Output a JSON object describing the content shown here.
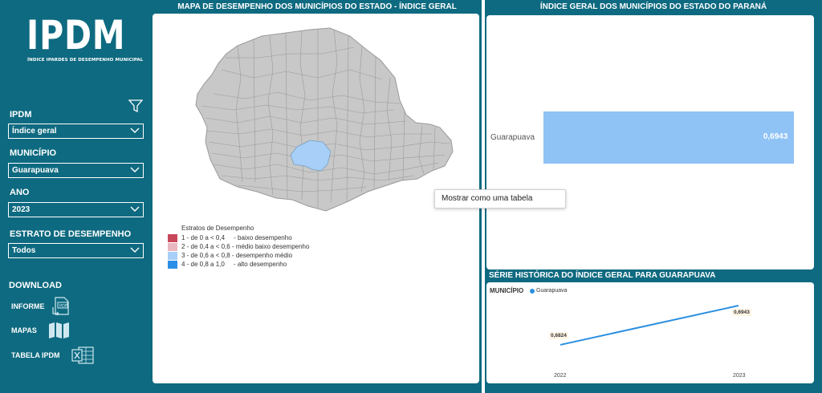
{
  "logo": {
    "title": "IPDM",
    "subtitle": "ÍNDICE IPARDES DE DESEMPENHO MUNICIPAL"
  },
  "filters": {
    "ipdm_label": "IPDM",
    "ipdm_value": "Índice geral",
    "municipio_label": "MUNICÍPIO",
    "municipio_value": "Guarapuava",
    "ano_label": "ANO",
    "ano_value": "2023",
    "estrato_label": "ESTRATO DE DESEMPENHO",
    "estrato_value": "Todos"
  },
  "download": {
    "title": "DOWNLOAD",
    "items": [
      {
        "label": "INFORME",
        "icon": "pdf-icon"
      },
      {
        "label": "MAPAS",
        "icon": "map-icon"
      },
      {
        "label": "TABELA IPDM",
        "icon": "excel-icon"
      }
    ]
  },
  "map_panel": {
    "title": "MAPA DE DESEMPENHO DOS MUNICÍPIOS DO ESTADO - ÍNDICE GERAL",
    "legend_title": "Estratos de Desempenho",
    "legend": [
      {
        "label": "1 - de 0 a < 0,4     - baixo desempenho",
        "color": "#c9475a"
      },
      {
        "label": "2 - de 0,4 a < 0,6 - médio baixo desempenho",
        "color": "#e8b7c0"
      },
      {
        "label": "3 - de 0,6 a < 0,8 - desempenho médio",
        "color": "#a7cff7"
      },
      {
        "label": "4 - de 0,8 a 1,0     - alto desempenho",
        "color": "#2b8fe8"
      }
    ],
    "highlight_color": "#a7cff7",
    "base_color": "#c8c8c8"
  },
  "tooltip": {
    "text": "Mostrar como uma tabela"
  },
  "chart_data": [
    {
      "type": "bar",
      "title": "ÍNDICE GERAL DOS MUNICÍPIOS DO ESTADO DO PARANÁ",
      "categories": [
        "Guarapuava"
      ],
      "values": [
        0.6943
      ],
      "value_labels": [
        "0,6943"
      ],
      "xlim": [
        0,
        0.7
      ]
    },
    {
      "type": "line",
      "title": "SÉRIE HISTÓRICA DO ÍNDICE GERAL PARA GUARAPUAVA",
      "legend_title": "MUNICÍPIO",
      "x": [
        "2022",
        "2023"
      ],
      "series": [
        {
          "name": "Guarapuava",
          "values": [
            0.6824,
            0.6943
          ],
          "labels": [
            "0,6824",
            "0,6943"
          ],
          "color": "#2b8fe0"
        }
      ]
    }
  ],
  "colors": {
    "brand": "#0e6a80",
    "bar": "#8fc2f5",
    "line": "#2b8fe0"
  }
}
